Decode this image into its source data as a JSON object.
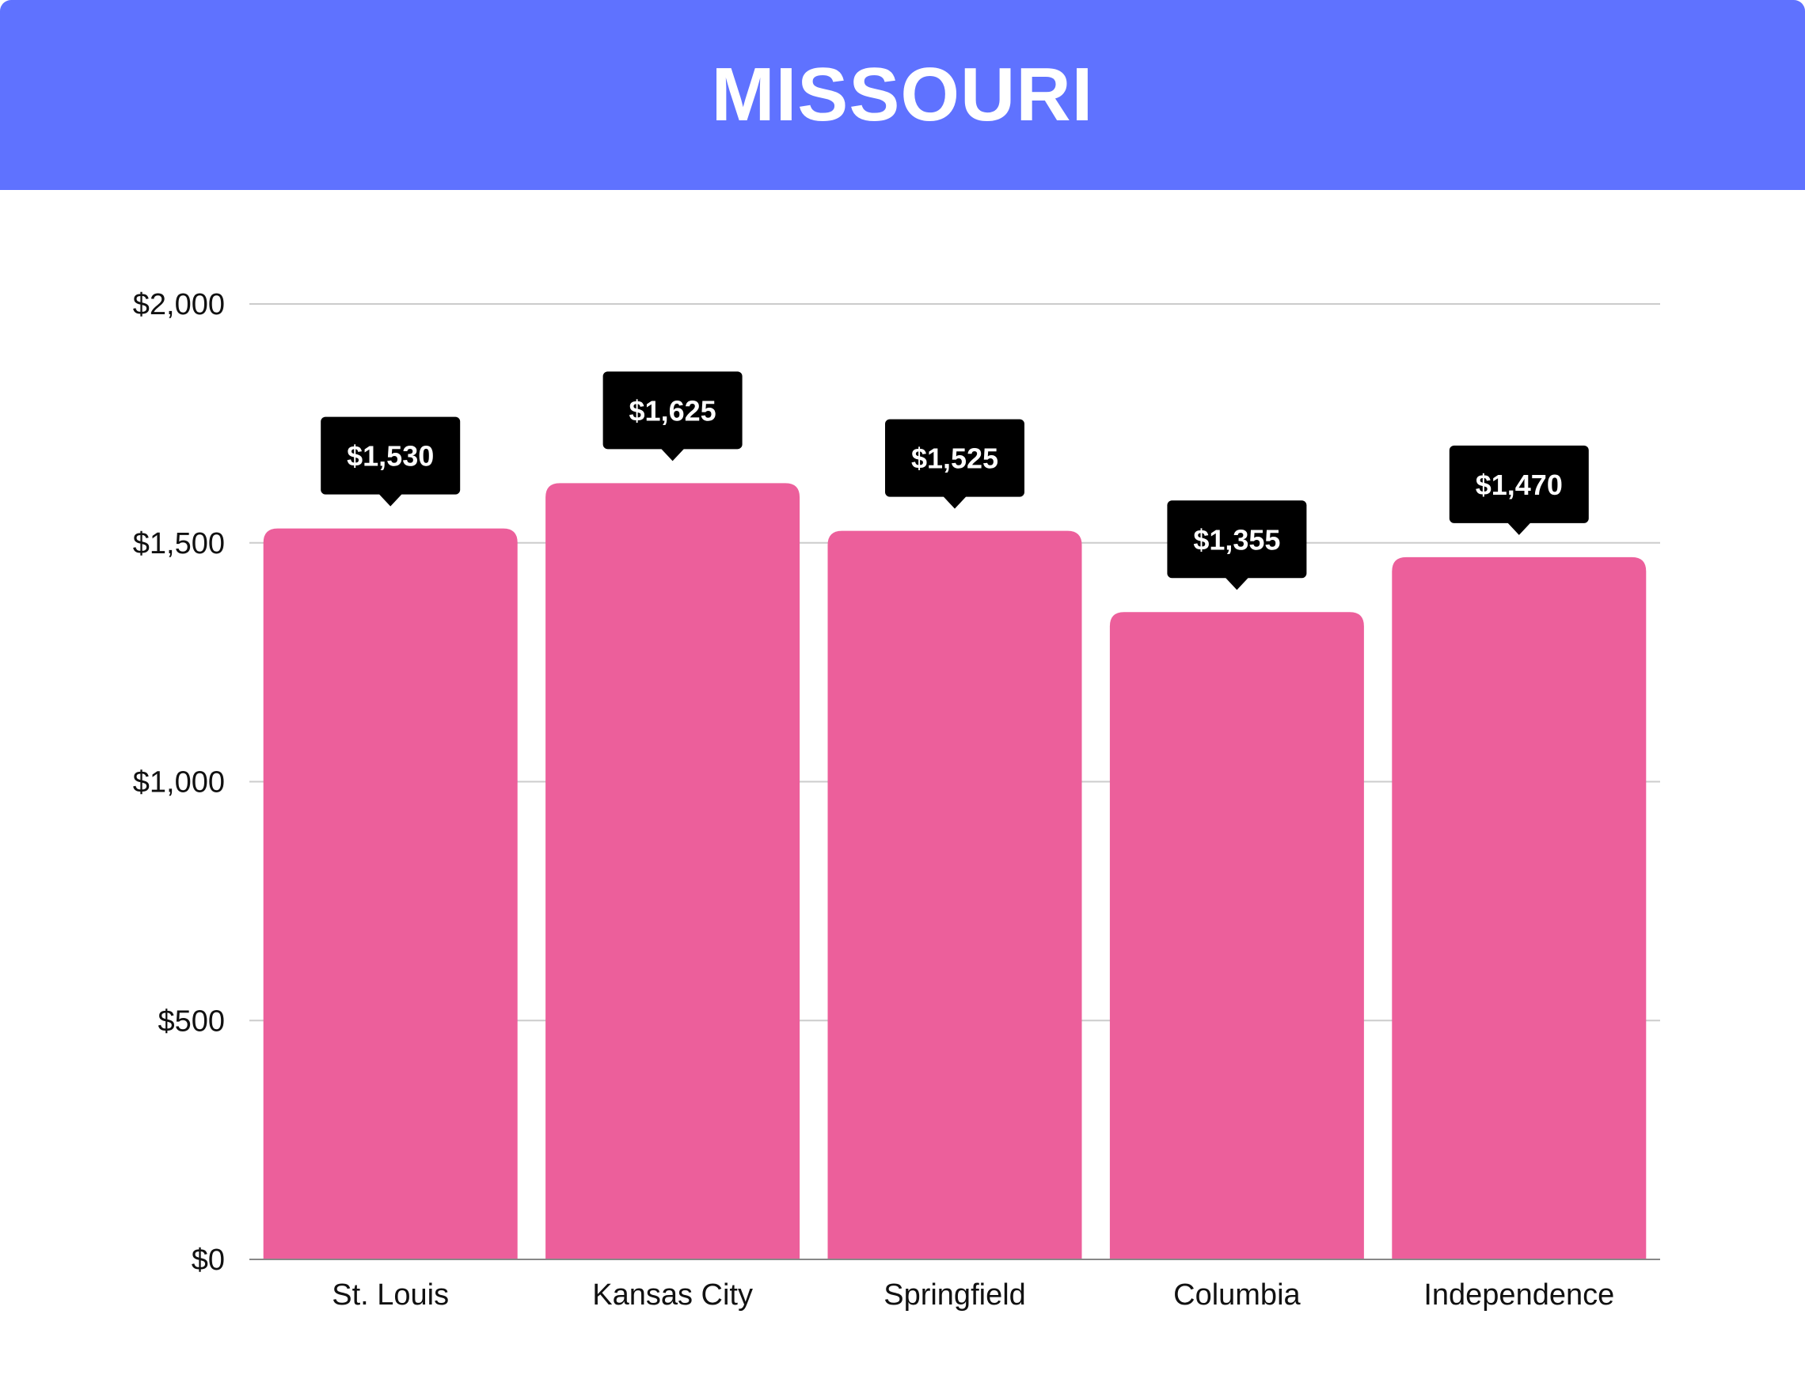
{
  "header": {
    "title": "MISSOURI"
  },
  "colors": {
    "header_bg": "#5f72ff",
    "bar": "#ec5f9b",
    "tooltip_bg": "#000000",
    "grid": "#cccccc",
    "axis": "#888888"
  },
  "chart_data": {
    "type": "bar",
    "title": "MISSOURI",
    "xlabel": "",
    "ylabel": "",
    "categories": [
      "St. Louis",
      "Kansas City",
      "Springfield",
      "Columbia",
      "Independence"
    ],
    "values": [
      1530,
      1625,
      1525,
      1355,
      1470
    ],
    "value_labels": [
      "$1,530",
      "$1,625",
      "$1,525",
      "$1,355",
      "$1,470"
    ],
    "ylim": [
      0,
      2000
    ],
    "yticks": [
      0,
      500,
      1000,
      1500,
      2000
    ],
    "ytick_labels": [
      "$0",
      "$500",
      "$1,000",
      "$1,500",
      "$2,000"
    ],
    "grid": true,
    "legend": "none"
  }
}
